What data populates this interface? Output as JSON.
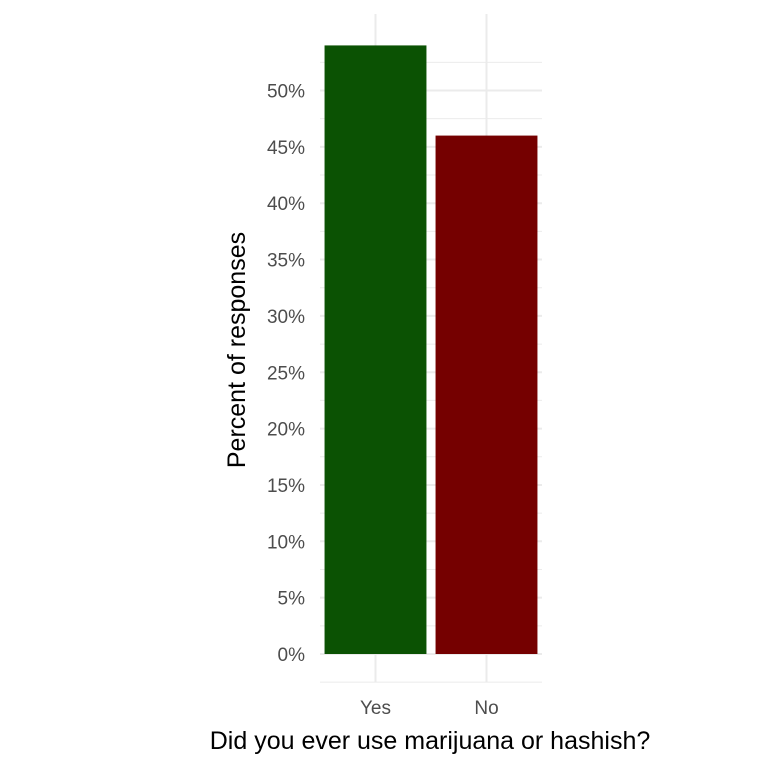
{
  "chart_data": {
    "type": "bar",
    "categories": [
      "Yes",
      "No"
    ],
    "values": [
      54.0,
      46.0
    ],
    "colors": [
      "#0b5203",
      "#750000"
    ],
    "title": "",
    "xlabel": "Did you ever use marijuana or hashish?",
    "ylabel": "Percent of responses",
    "ylim": [
      0,
      56
    ],
    "yticks": [
      0,
      5,
      10,
      15,
      20,
      25,
      30,
      35,
      40,
      45,
      50
    ],
    "ytick_labels": [
      "0%",
      "5%",
      "10%",
      "15%",
      "20%",
      "25%",
      "30%",
      "35%",
      "40%",
      "45%",
      "50%"
    ],
    "grid": true,
    "legend": "none"
  }
}
